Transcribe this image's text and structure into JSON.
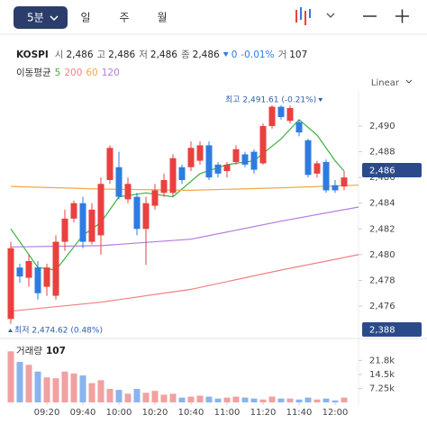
{
  "toolbar": {
    "interval": "5분",
    "tabs": [
      "일",
      "주",
      "월"
    ]
  },
  "info": {
    "symbol": "KOSPI",
    "fields": [
      {
        "label": "시",
        "value": "2,486"
      },
      {
        "label": "고",
        "value": "2,486"
      },
      {
        "label": "저",
        "value": "2,486"
      },
      {
        "label": "종",
        "value": "2,486"
      }
    ],
    "change": "0",
    "change_pct": "-0.01%",
    "volume_label": "거",
    "volume": "107"
  },
  "chart_data": [
    {
      "type": "candlestick",
      "legend_title": "이동평균",
      "scale_label": "Linear",
      "up_color": "#e8413f",
      "down_color": "#2f7ce0",
      "xlim": [
        -1,
        38.6
      ],
      "ylim": [
        2473.9,
        2492.8
      ],
      "yticks": [
        {
          "value": 2476,
          "label": "2,476"
        },
        {
          "value": 2478,
          "label": "2,478"
        },
        {
          "value": 2480,
          "label": "2,480"
        },
        {
          "value": 2482,
          "label": "2,482"
        },
        {
          "value": 2484,
          "label": "2,484"
        },
        {
          "value": 2486,
          "label": "2,486"
        },
        {
          "value": 2488,
          "label": "2,488"
        },
        {
          "value": 2490,
          "label": "2,490"
        }
      ],
      "open": [
        2475.0,
        2479.0,
        2478.2,
        2479.0,
        2477.5,
        2476.8,
        2481.0,
        2482.8,
        2484.0,
        2481.0,
        2481.5,
        2485.8,
        2486.8,
        2484.3,
        2484.5,
        2482.0,
        2483.8,
        2484.8,
        2484.8,
        2486.8,
        2486.8,
        2487.3,
        2488.5,
        2487.0,
        2486.5,
        2487.2,
        2487.8,
        2488.0,
        2487.1,
        2490.0,
        2491.5,
        2490.4,
        2490.3,
        2488.9,
        2486.3,
        2487.2,
        2485.4,
        2485.3
      ],
      "high": [
        2481.0,
        2479.3,
        2480.0,
        2479.5,
        2479.3,
        2481.5,
        2483.5,
        2484.2,
        2484.5,
        2484.0,
        2486.0,
        2488.5,
        2488.0,
        2486.0,
        2484.8,
        2484.5,
        2485.5,
        2486.3,
        2487.8,
        2487.0,
        2488.8,
        2488.8,
        2488.8,
        2487.2,
        2487.2,
        2488.5,
        2488.0,
        2488.2,
        2490.2,
        2491.61,
        2491.61,
        2491.6,
        2490.5,
        2489.0,
        2487.3,
        2487.4,
        2485.8,
        2486.5
      ],
      "low": [
        2474.62,
        2477.8,
        2477.5,
        2476.5,
        2476.8,
        2476.5,
        2480.3,
        2482.5,
        2480.5,
        2480.8,
        2480.0,
        2485.5,
        2484.3,
        2484.0,
        2481.5,
        2479.2,
        2483.5,
        2484.5,
        2484.5,
        2485.5,
        2486.5,
        2487.0,
        2485.8,
        2486.0,
        2486.0,
        2487.0,
        2486.8,
        2486.3,
        2487.0,
        2489.8,
        2490.5,
        2490.2,
        2489.2,
        2486.0,
        2486.0,
        2484.8,
        2484.8,
        2485.0
      ],
      "close": [
        2480.5,
        2478.3,
        2479.5,
        2477.0,
        2479.0,
        2481.0,
        2482.8,
        2484.0,
        2481.0,
        2483.5,
        2485.5,
        2488.3,
        2484.5,
        2485.5,
        2482.0,
        2484.0,
        2485.0,
        2485.8,
        2487.5,
        2485.8,
        2488.3,
        2488.5,
        2486.0,
        2486.3,
        2487.0,
        2488.2,
        2487.0,
        2486.6,
        2490.0,
        2491.5,
        2490.7,
        2491.4,
        2489.5,
        2486.2,
        2487.1,
        2485.0,
        2485.0,
        2486.0
      ],
      "series": [
        {
          "name": "5",
          "color": "#3cb043",
          "x": [
            0,
            3,
            5,
            8,
            10,
            12,
            15,
            18,
            21,
            24,
            27,
            30,
            32,
            34,
            36,
            37
          ],
          "values": [
            2482,
            2479,
            2478.8,
            2481.5,
            2482.5,
            2484.5,
            2484.8,
            2484.5,
            2486.3,
            2487,
            2487.3,
            2489,
            2490.5,
            2489.3,
            2487.3,
            2486.5
          ]
        },
        {
          "name": "200",
          "color": "#f08080",
          "x": [
            0,
            10,
            20,
            30,
            38.6
          ],
          "values": [
            2475.6,
            2476.3,
            2477.3,
            2478.8,
            2480.0
          ]
        },
        {
          "name": "60",
          "color": "#f0a84a",
          "x": [
            0,
            10,
            20,
            30,
            38.6
          ],
          "values": [
            2485.3,
            2485.1,
            2485.0,
            2485.2,
            2485.4
          ]
        },
        {
          "name": "120",
          "color": "#b57be0",
          "x": [
            0,
            10,
            20,
            30,
            38.6
          ],
          "values": [
            2480.6,
            2480.7,
            2481.2,
            2482.6,
            2483.7
          ]
        }
      ],
      "high_annotation": "최고 2,491.61 (-0.21%)",
      "low_annotation": "최저 2,474.62 (0.48%)",
      "price_tag": "2,486",
      "bottom_tag": "2,388"
    },
    {
      "type": "bar",
      "title": "거래량",
      "current": "107",
      "up_color": "#f2a0a0",
      "down_color": "#8ab4ee",
      "xlim": [
        -1,
        38.6
      ],
      "ylim": [
        0,
        29900
      ],
      "yticks": [
        {
          "value": 7250,
          "label": "7.25k"
        },
        {
          "value": 14500,
          "label": "14.5k"
        },
        {
          "value": 21800,
          "label": "21.8k"
        }
      ],
      "xticks": [
        {
          "value": 4,
          "label": "09:20"
        },
        {
          "value": 8,
          "label": "09:40"
        },
        {
          "value": 12,
          "label": "10:00"
        },
        {
          "value": 16,
          "label": "10:20"
        },
        {
          "value": 20,
          "label": "10:40"
        },
        {
          "value": 24,
          "label": "11:00"
        },
        {
          "value": 28,
          "label": "11:20"
        },
        {
          "value": 32,
          "label": "11:40"
        },
        {
          "value": 36,
          "label": "12:00"
        }
      ],
      "values": [
        26500,
        21000,
        19500,
        16000,
        13000,
        12500,
        16000,
        15000,
        14000,
        10000,
        11500,
        7000,
        6500,
        4500,
        7000,
        5000,
        6000,
        4000,
        4500,
        2500,
        3000,
        3500,
        3000,
        2000,
        2500,
        3000,
        2500,
        2000,
        1500,
        3000,
        2000,
        2000,
        1500,
        2500,
        1500,
        2000,
        1000,
        2500
      ]
    }
  ]
}
